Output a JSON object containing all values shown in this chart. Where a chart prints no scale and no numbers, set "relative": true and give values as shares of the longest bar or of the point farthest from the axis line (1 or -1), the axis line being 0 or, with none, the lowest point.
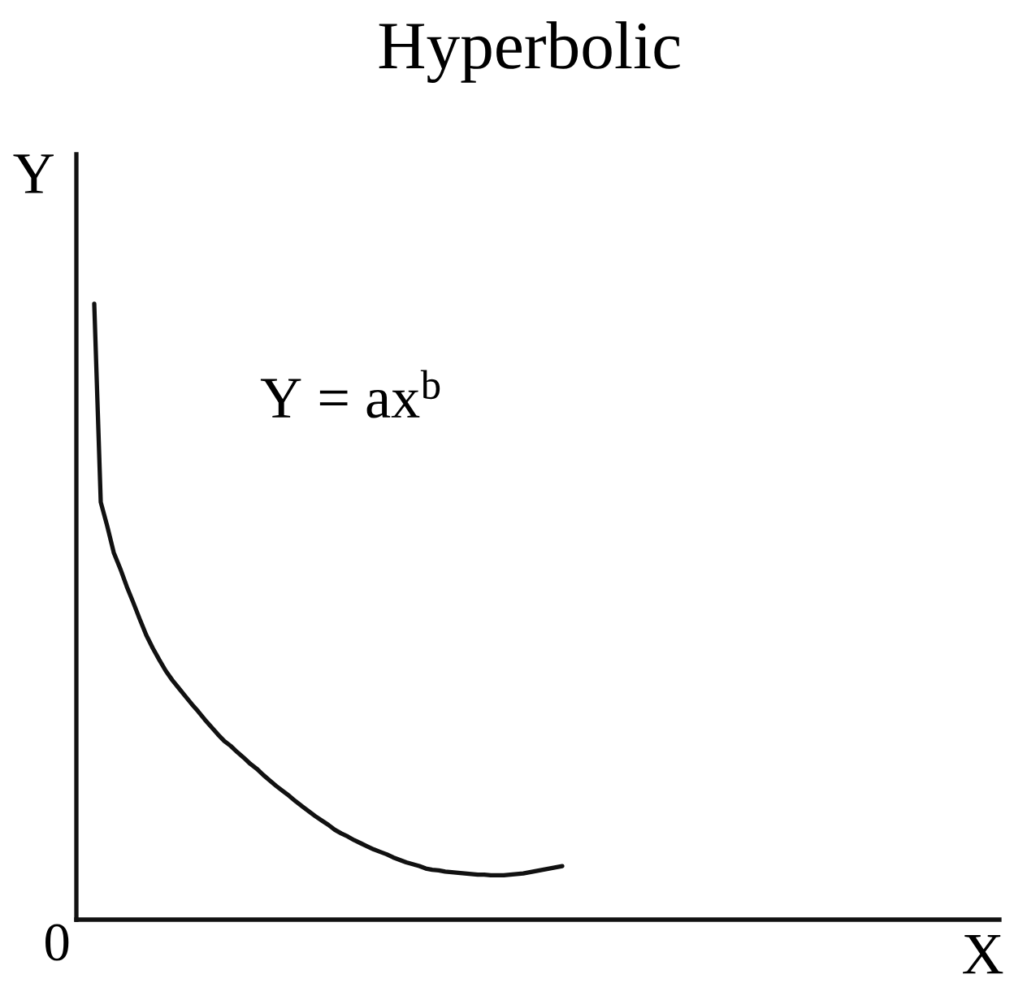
{
  "chart_data": {
    "type": "line",
    "title": "Hyperbolic",
    "ylabel": "Y",
    "annotations": [
      "Y = ax$^{b}$",
      "0",
      "X"
    ],
    "relative": true,
    "color": "#111111",
    "line_style": "solid",
    "categories": [
      null,
      null,
      null,
      null,
      null,
      null,
      null,
      null,
      null,
      null,
      null,
      null,
      null,
      null,
      null,
      null,
      null,
      null,
      null,
      null,
      null,
      null,
      null,
      null,
      null,
      null,
      null,
      null,
      null,
      null,
      null,
      null,
      null,
      null,
      null,
      null,
      null,
      null,
      null,
      null,
      null,
      null,
      null,
      null,
      null,
      null,
      null,
      null,
      null,
      null,
      null,
      null,
      null,
      null,
      null,
      null,
      null,
      null,
      null,
      null,
      null,
      null,
      null,
      null,
      null,
      null,
      null,
      null,
      null,
      null,
      null,
      null,
      null
    ],
    "values": [
      1.0,
      0.678,
      0.639,
      0.596,
      0.57,
      0.541,
      0.515,
      0.488,
      0.462,
      0.441,
      0.422,
      0.404,
      0.389,
      0.376,
      0.363,
      0.35,
      0.338,
      0.325,
      0.313,
      0.301,
      0.29,
      0.282,
      0.272,
      0.263,
      0.253,
      0.245,
      0.235,
      0.226,
      0.217,
      0.209,
      0.201,
      0.192,
      0.184,
      0.176,
      0.168,
      0.161,
      0.154,
      0.146,
      0.14,
      0.135,
      0.129,
      0.124,
      0.119,
      0.114,
      0.11,
      0.106,
      0.101,
      0.097,
      0.093,
      0.09,
      0.087,
      0.083,
      0.081,
      0.08,
      0.078,
      0.077,
      0.076,
      0.075,
      0.074,
      0.073,
      0.073,
      0.072,
      0.072,
      0.072,
      0.073,
      0.074,
      0.075,
      0.077,
      0.079,
      0.081,
      0.083,
      0.085,
      0.087
    ]
  }
}
